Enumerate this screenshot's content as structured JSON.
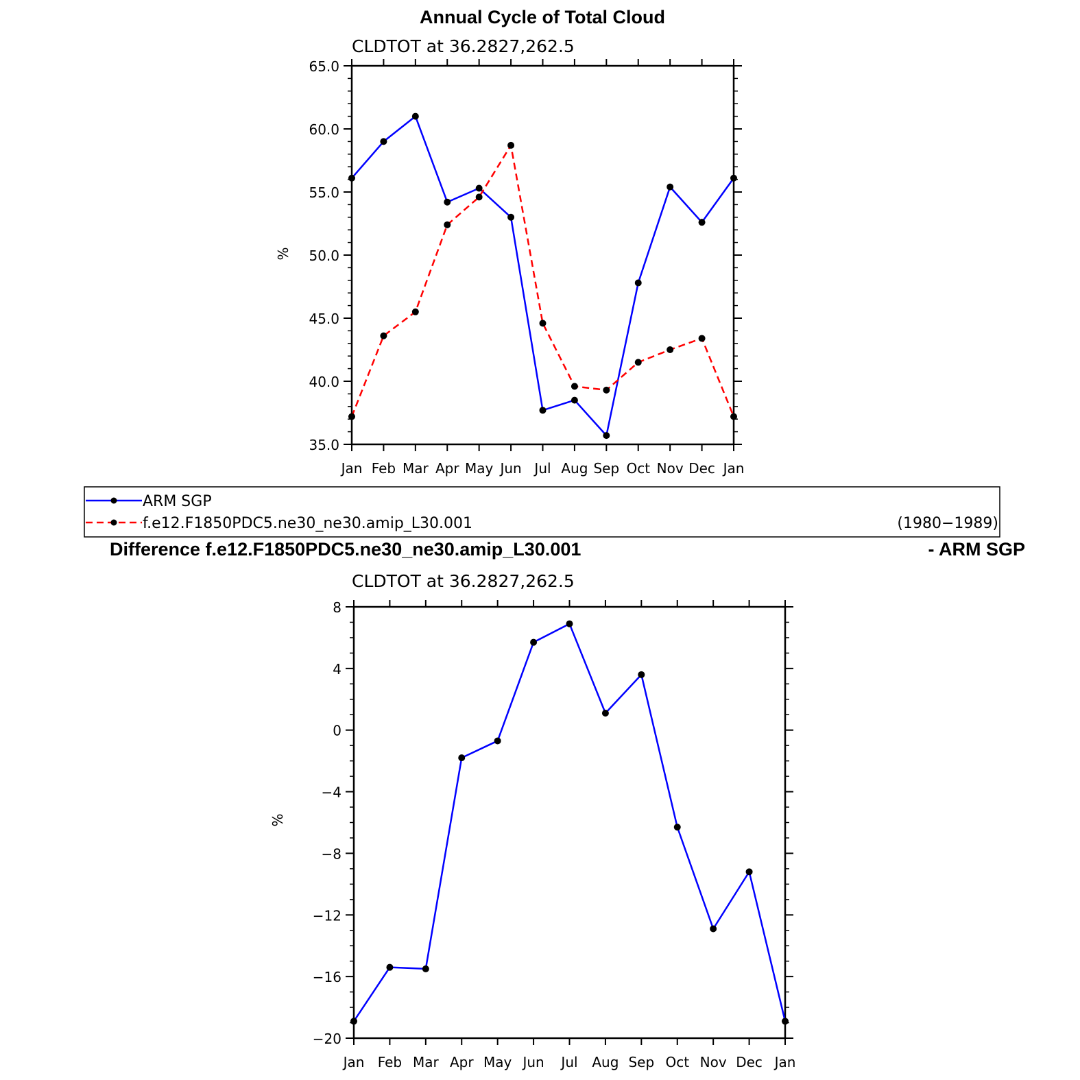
{
  "figure": {
    "top_title": "Annual Cycle of Total Cloud",
    "diff_title": "Difference f.e12.F1850PDC5.ne30_ne30.amip_L30.001",
    "diff_title_right": "- ARM SGP"
  },
  "legend": {
    "entries": [
      {
        "label": "ARM SGP",
        "color": "#0000ff",
        "dash": "solid"
      },
      {
        "label": "f.e12.F1850PDC5.ne30_ne30.amip_L30.001",
        "color": "#ff0000",
        "dash": "dashed"
      }
    ],
    "period": "(1980−1989)"
  },
  "chart_data": [
    {
      "type": "line",
      "title": "CLDTOT at 36.2827,262.5",
      "ylabel": "%",
      "xlabel": "",
      "categories": [
        "Jan",
        "Feb",
        "Mar",
        "Apr",
        "May",
        "Jun",
        "Jul",
        "Aug",
        "Sep",
        "Oct",
        "Nov",
        "Dec",
        "Jan"
      ],
      "ylim": [
        35.0,
        65.0
      ],
      "yticks": [
        "35.0",
        "40.0",
        "45.0",
        "50.0",
        "55.0",
        "60.0",
        "65.0"
      ],
      "ytick_values": [
        35,
        40,
        45,
        50,
        55,
        60,
        65
      ],
      "grid": false,
      "series": [
        {
          "name": "ARM SGP",
          "color": "#0000ff",
          "dash": "solid",
          "values": [
            56.1,
            59.0,
            61.0,
            54.2,
            55.3,
            53.0,
            37.7,
            38.5,
            35.7,
            47.8,
            55.4,
            52.6,
            56.1
          ]
        },
        {
          "name": "f.e12.F1850PDC5.ne30_ne30.amip_L30.001",
          "color": "#ff0000",
          "dash": "dashed",
          "values": [
            37.2,
            43.6,
            45.5,
            52.4,
            54.6,
            58.7,
            44.6,
            39.6,
            39.3,
            41.5,
            42.5,
            43.4,
            37.2
          ]
        }
      ]
    },
    {
      "type": "line",
      "title": "CLDTOT at 36.2827,262.5",
      "ylabel": "%",
      "xlabel": "",
      "categories": [
        "Jan",
        "Feb",
        "Mar",
        "Apr",
        "May",
        "Jun",
        "Jul",
        "Aug",
        "Sep",
        "Oct",
        "Nov",
        "Dec",
        "Jan"
      ],
      "ylim": [
        -20,
        8
      ],
      "yticks": [
        "−20",
        "−16",
        "−12",
        "−8",
        "−4",
        "0",
        "4",
        "8"
      ],
      "ytick_values": [
        -20,
        -16,
        -12,
        -8,
        -4,
        0,
        4,
        8
      ],
      "grid": false,
      "series": [
        {
          "color": "#0000ff",
          "dash": "solid",
          "values": [
            -18.9,
            -15.4,
            -15.5,
            -1.8,
            -0.7,
            5.7,
            6.9,
            1.1,
            3.6,
            -6.3,
            -12.9,
            -9.2,
            -18.9
          ]
        }
      ]
    }
  ]
}
